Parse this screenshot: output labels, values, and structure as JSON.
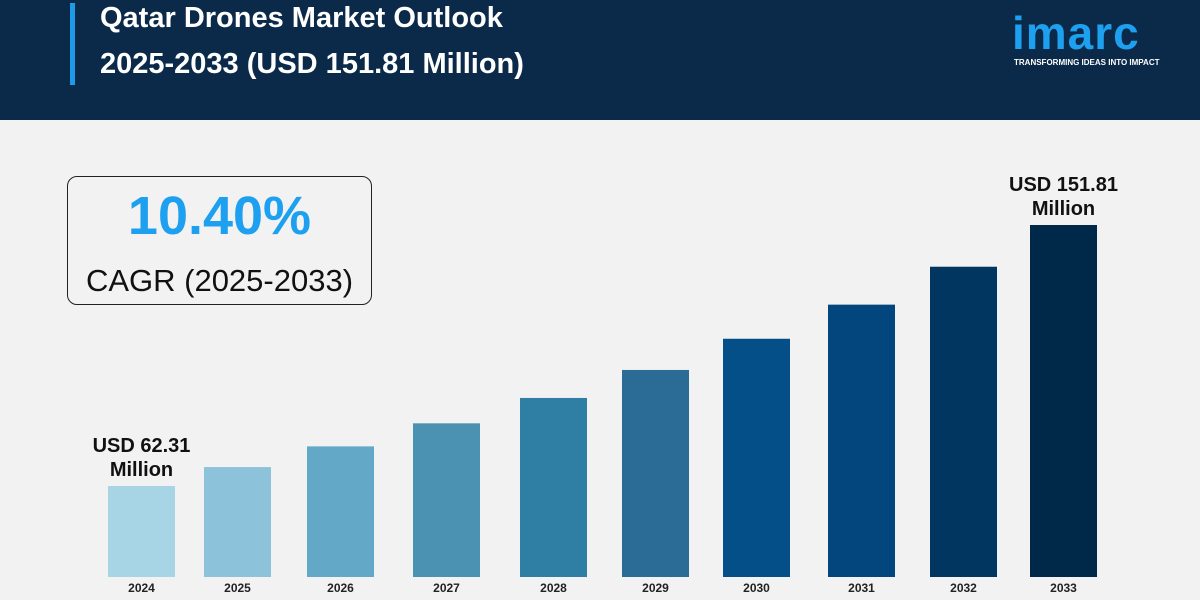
{
  "header": {
    "title_line1": "Qatar Drones Market Outlook",
    "title_line2": "2025-2033 (USD 151.81 Million)"
  },
  "logo": {
    "word": "imarc",
    "tagline": "TRANSFORMING IDEAS INTO IMPACT"
  },
  "cagr": {
    "value": "10.40%",
    "label": "CAGR (2025-2033)"
  },
  "chart_data": {
    "type": "bar",
    "title": "Qatar Drones Market Outlook 2025-2033 (USD 151.81 Million)",
    "categories": [
      "2024",
      "2025",
      "2026",
      "2027",
      "2028",
      "2029",
      "2030",
      "2031",
      "2032",
      "2033"
    ],
    "values": [
      62.31,
      68.8,
      75.9,
      83.8,
      92.5,
      102.1,
      112.8,
      124.5,
      137.5,
      151.81
    ],
    "colors": [
      "#a8d5e6",
      "#8cc3da",
      "#64a8c8",
      "#4a91b2",
      "#2f7fa5",
      "#2a6c96",
      "#044f88",
      "#03467e",
      "#00365f",
      "#002848"
    ],
    "annotations": [
      {
        "category": "2024",
        "line1": "USD 62.31",
        "line2": "Million"
      },
      {
        "category": "2033",
        "line1": "USD 151.81",
        "line2": "Million"
      }
    ],
    "grid": false,
    "yaxis_visible": false
  }
}
